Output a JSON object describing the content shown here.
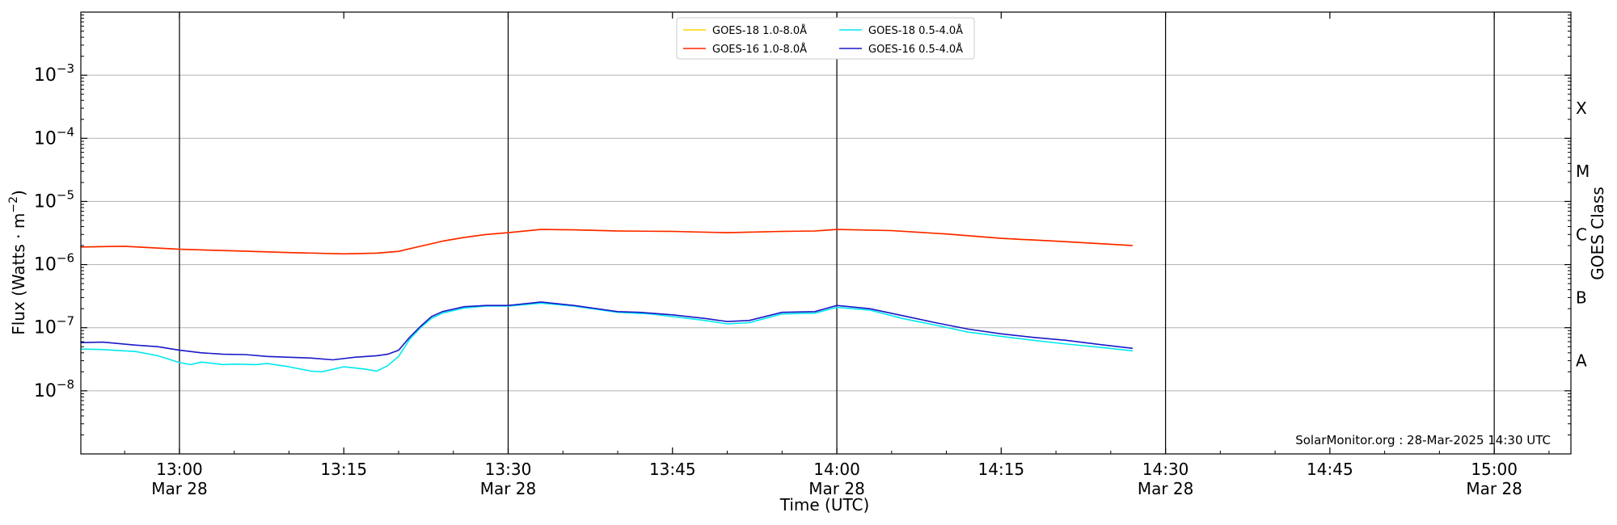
{
  "chart_data": {
    "type": "line",
    "xlabel": "Time (UTC)",
    "ylabel": "Flux (Watts · m^-2)",
    "ylabel_right": "GOES Class",
    "y_scale": "log",
    "ylim": [
      1e-09,
      0.01
    ],
    "xlim": [
      "12:51",
      "15:07"
    ],
    "grid": "horizontal at decades",
    "legend_position": "top-center",
    "x_ticks": [
      {
        "t": "13:00",
        "label": "13:00",
        "date": "Mar 28"
      },
      {
        "t": "13:15",
        "label": "13:15",
        "date": ""
      },
      {
        "t": "13:30",
        "label": "13:30",
        "date": "Mar 28"
      },
      {
        "t": "13:45",
        "label": "13:45",
        "date": ""
      },
      {
        "t": "14:00",
        "label": "14:00",
        "date": "Mar 28"
      },
      {
        "t": "14:15",
        "label": "14:15",
        "date": ""
      },
      {
        "t": "14:30",
        "label": "14:30",
        "date": "Mar 28"
      },
      {
        "t": "14:45",
        "label": "14:45",
        "date": ""
      },
      {
        "t": "15:00",
        "label": "15:00",
        "date": "Mar 28"
      }
    ],
    "y_ticks": [
      {
        "v": 1e-08,
        "base": "10",
        "exp": "−8"
      },
      {
        "v": 1e-07,
        "base": "10",
        "exp": "−7"
      },
      {
        "v": 1e-06,
        "base": "10",
        "exp": "−6"
      },
      {
        "v": 1e-05,
        "base": "10",
        "exp": "−5"
      },
      {
        "v": 0.0001,
        "base": "10",
        "exp": "−4"
      },
      {
        "v": 0.001,
        "base": "10",
        "exp": "−3"
      }
    ],
    "classes": [
      {
        "label": "A",
        "v": 3e-08
      },
      {
        "label": "B",
        "v": 3e-07
      },
      {
        "label": "C",
        "v": 3e-06
      },
      {
        "label": "M",
        "v": 3e-05
      },
      {
        "label": "X",
        "v": 0.0003
      }
    ],
    "vertical_lines": [
      "13:00",
      "13:30",
      "14:00",
      "14:30",
      "15:00"
    ],
    "annotation": "SolarMonitor.org : 28-Mar-2025 14:30 UTC",
    "series": [
      {
        "name": "GOES-18 1.0-8.0Å",
        "color": "#ffd700",
        "x": [
          "12:51",
          "12:55",
          "13:00",
          "13:05",
          "13:10",
          "13:15",
          "13:18",
          "13:20",
          "13:22",
          "13:24",
          "13:26",
          "13:28",
          "13:30",
          "13:33",
          "13:36",
          "13:40",
          "13:45",
          "13:50",
          "13:55",
          "13:58",
          "14:00",
          "14:05",
          "14:10",
          "14:15",
          "14:20",
          "14:27"
        ],
        "values": [
          1.9e-06,
          1.95e-06,
          1.75e-06,
          1.65e-06,
          1.55e-06,
          1.48e-06,
          1.52e-06,
          1.62e-06,
          1.95e-06,
          2.35e-06,
          2.7e-06,
          3e-06,
          3.2e-06,
          3.6e-06,
          3.55e-06,
          3.4e-06,
          3.35e-06,
          3.2e-06,
          3.35e-06,
          3.4e-06,
          3.6e-06,
          3.45e-06,
          3.05e-06,
          2.6e-06,
          2.35e-06,
          2e-06
        ]
      },
      {
        "name": "GOES-16 1.0-8.0Å",
        "color": "#ff2200",
        "x": [
          "12:51",
          "12:55",
          "13:00",
          "13:05",
          "13:10",
          "13:15",
          "13:18",
          "13:20",
          "13:22",
          "13:24",
          "13:26",
          "13:28",
          "13:30",
          "13:33",
          "13:36",
          "13:40",
          "13:45",
          "13:50",
          "13:55",
          "13:58",
          "14:00",
          "14:05",
          "14:10",
          "14:15",
          "14:20",
          "14:27"
        ],
        "values": [
          1.9e-06,
          1.95e-06,
          1.75e-06,
          1.65e-06,
          1.55e-06,
          1.48e-06,
          1.52e-06,
          1.62e-06,
          1.95e-06,
          2.35e-06,
          2.7e-06,
          3e-06,
          3.2e-06,
          3.6e-06,
          3.55e-06,
          3.4e-06,
          3.35e-06,
          3.2e-06,
          3.35e-06,
          3.4e-06,
          3.6e-06,
          3.45e-06,
          3.05e-06,
          2.6e-06,
          2.35e-06,
          2e-06
        ]
      },
      {
        "name": "GOES-18 0.5-4.0Å",
        "color": "#00e8ee",
        "x": [
          "12:51",
          "12:53",
          "12:56",
          "12:58",
          "13:00",
          "13:01",
          "13:02",
          "13:04",
          "13:05",
          "13:07",
          "13:08",
          "13:10",
          "13:12",
          "13:13",
          "13:15",
          "13:17",
          "13:18",
          "13:19",
          "13:20",
          "13:21",
          "13:22",
          "13:23",
          "13:24",
          "13:26",
          "13:28",
          "13:30",
          "13:33",
          "13:36",
          "13:40",
          "13:43",
          "13:45",
          "13:48",
          "13:50",
          "13:52",
          "13:55",
          "13:58",
          "14:00",
          "14:03",
          "14:06",
          "14:09",
          "14:12",
          "14:15",
          "14:18",
          "14:21",
          "14:24",
          "14:27"
        ],
        "values": [
          4.6e-08,
          4.5e-08,
          4.2e-08,
          3.6e-08,
          2.8e-08,
          2.6e-08,
          2.85e-08,
          2.6e-08,
          2.65e-08,
          2.6e-08,
          2.7e-08,
          2.4e-08,
          2.05e-08,
          2e-08,
          2.4e-08,
          2.2e-08,
          2.05e-08,
          2.5e-08,
          3.5e-08,
          6.5e-08,
          1e-07,
          1.4e-07,
          1.7e-07,
          2.05e-07,
          2.2e-07,
          2.2e-07,
          2.45e-07,
          2.2e-07,
          1.75e-07,
          1.65e-07,
          1.5e-07,
          1.3e-07,
          1.15e-07,
          1.2e-07,
          1.65e-07,
          1.7e-07,
          2.1e-07,
          1.9e-07,
          1.4e-07,
          1.1e-07,
          8.5e-08,
          7.3e-08,
          6.3e-08,
          5.5e-08,
          4.9e-08,
          4.3e-08
        ]
      },
      {
        "name": "GOES-16 0.5-4.0Å",
        "color": "#1a18c8",
        "x": [
          "12:51",
          "12:53",
          "12:56",
          "12:58",
          "13:00",
          "13:02",
          "13:04",
          "13:06",
          "13:08",
          "13:10",
          "13:12",
          "13:14",
          "13:16",
          "13:18",
          "13:19",
          "13:20",
          "13:21",
          "13:22",
          "13:23",
          "13:24",
          "13:26",
          "13:28",
          "13:30",
          "13:33",
          "13:36",
          "13:40",
          "13:42",
          "13:45",
          "13:48",
          "13:50",
          "13:52",
          "13:55",
          "13:58",
          "14:00",
          "14:03",
          "14:06",
          "14:09",
          "14:12",
          "14:15",
          "14:18",
          "14:21",
          "14:24",
          "14:27"
        ],
        "values": [
          5.8e-08,
          5.9e-08,
          5.3e-08,
          5e-08,
          4.4e-08,
          4e-08,
          3.8e-08,
          3.75e-08,
          3.5e-08,
          3.4e-08,
          3.3e-08,
          3.1e-08,
          3.4e-08,
          3.6e-08,
          3.8e-08,
          4.4e-08,
          7e-08,
          1.05e-07,
          1.5e-07,
          1.8e-07,
          2.15e-07,
          2.25e-07,
          2.25e-07,
          2.55e-07,
          2.25e-07,
          1.8e-07,
          1.75e-07,
          1.6e-07,
          1.4e-07,
          1.25e-07,
          1.3e-07,
          1.75e-07,
          1.8e-07,
          2.25e-07,
          2e-07,
          1.55e-07,
          1.2e-07,
          9.5e-08,
          8e-08,
          7e-08,
          6.3e-08,
          5.4e-08,
          4.7e-08
        ]
      }
    ]
  }
}
